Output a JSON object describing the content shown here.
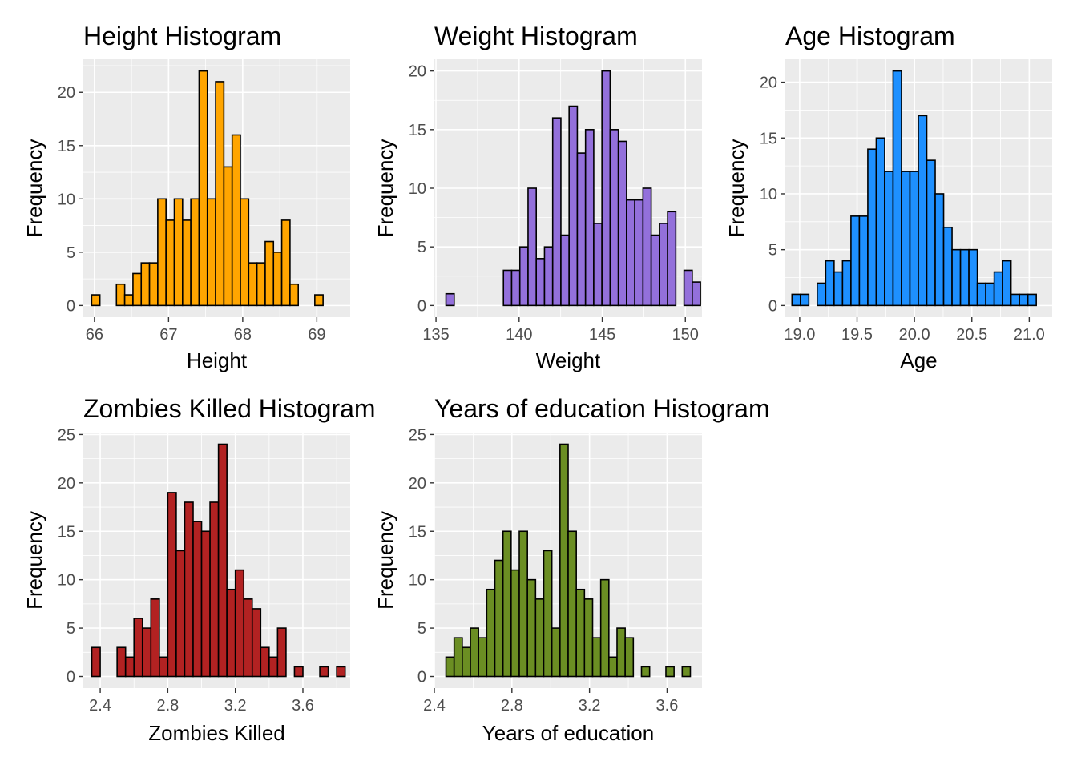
{
  "chart_data": [
    {
      "type": "bar",
      "title": "Height Histogram",
      "xlabel": "Height",
      "ylabel": "Frequency",
      "fill": "#FFA500",
      "xlim": [
        65.85,
        69.45
      ],
      "ylim": [
        -1.1,
        23.1
      ],
      "xticks": [
        66,
        67,
        68,
        69
      ],
      "xtick_labels": [
        "66",
        "67",
        "68",
        "69"
      ],
      "yticks": [
        0,
        5,
        10,
        15,
        20
      ],
      "ytick_labels": [
        "0",
        "5",
        "10",
        "15",
        "20"
      ],
      "bin_start": 65.962,
      "bin_width": 0.1115,
      "values": [
        1,
        0,
        0,
        2,
        1,
        3,
        4,
        4,
        10,
        8,
        10,
        8,
        10,
        22,
        10,
        21,
        13,
        16,
        10,
        4,
        4,
        6,
        5,
        8,
        2,
        0,
        0,
        1
      ]
    },
    {
      "type": "bar",
      "title": "Weight Histogram",
      "xlabel": "Weight",
      "ylabel": "Frequency",
      "fill": "#9370DB",
      "xlim": [
        134.9,
        151.0
      ],
      "ylim": [
        -1.0,
        21.0
      ],
      "xticks": [
        135,
        140,
        145,
        150
      ],
      "xtick_labels": [
        "135",
        "140",
        "145",
        "150"
      ],
      "yticks": [
        0,
        5,
        10,
        15,
        20
      ],
      "ytick_labels": [
        "0",
        "5",
        "10",
        "15",
        "20"
      ],
      "bin_start": 135.6,
      "bin_width": 0.4938,
      "values": [
        1,
        0,
        0,
        0,
        0,
        0,
        0,
        3,
        3,
        5,
        10,
        4,
        5,
        16,
        6,
        17,
        13,
        15,
        7,
        20,
        15,
        14,
        9,
        9,
        10,
        6,
        7,
        8,
        0,
        3,
        2
      ]
    },
    {
      "type": "bar",
      "title": "Age Histogram",
      "xlabel": "Age",
      "ylabel": "Frequency",
      "fill": "#1E90FF",
      "xlim": [
        18.875,
        21.2
      ],
      "ylim": [
        -1.05,
        22.05
      ],
      "xticks": [
        19.0,
        19.5,
        20.0,
        20.5,
        21.0
      ],
      "xtick_labels": [
        "19.0",
        "19.5",
        "20.0",
        "20.5",
        "21.0"
      ],
      "yticks": [
        0,
        5,
        10,
        15,
        20
      ],
      "ytick_labels": [
        "0",
        "5",
        "10",
        "15",
        "20"
      ],
      "bin_start": 18.933,
      "bin_width": 0.0734,
      "values": [
        1,
        1,
        0,
        2,
        4,
        3,
        4,
        8,
        8,
        14,
        15,
        12,
        21,
        12,
        12,
        17,
        13,
        10,
        7,
        5,
        5,
        5,
        2,
        2,
        3,
        4,
        1,
        1,
        1
      ]
    },
    {
      "type": "bar",
      "title": "Zombies Killed Histogram",
      "xlabel": "Zombies Killed",
      "ylabel": "Frequency",
      "fill": "#B22222",
      "xlim": [
        2.3,
        3.88
      ],
      "ylim": [
        -1.2,
        25.2
      ],
      "xticks": [
        2.4,
        2.8,
        3.2,
        3.6
      ],
      "xtick_labels": [
        "2.4",
        "2.8",
        "3.2",
        "3.6"
      ],
      "yticks": [
        0,
        5,
        10,
        15,
        20,
        25
      ],
      "ytick_labels": [
        "0",
        "5",
        "10",
        "15",
        "20",
        "25"
      ],
      "bin_start": 2.35,
      "bin_width": 0.05,
      "values": [
        3,
        0,
        0,
        3,
        2,
        6,
        5,
        8,
        2,
        19,
        13,
        18,
        16,
        15,
        18,
        24,
        9,
        11,
        8,
        7,
        3,
        2,
        5,
        0,
        1,
        0,
        0,
        1,
        0,
        1
      ]
    },
    {
      "type": "bar",
      "title": "Years of education Histogram",
      "xlabel": "Years of education",
      "ylabel": "Frequency",
      "fill": "#6B8E23",
      "xlim": [
        2.4,
        3.78
      ],
      "ylim": [
        -1.2,
        25.2
      ],
      "xticks": [
        2.4,
        2.8,
        3.2,
        3.6
      ],
      "xtick_labels": [
        "2.4",
        "2.8",
        "3.2",
        "3.6"
      ],
      "yticks": [
        0,
        5,
        10,
        15,
        20,
        25
      ],
      "ytick_labels": [
        "0",
        "5",
        "10",
        "15",
        "20",
        "25"
      ],
      "bin_start": 2.46,
      "bin_width": 0.042,
      "values": [
        2,
        4,
        3,
        5,
        4,
        9,
        12,
        15,
        11,
        15,
        10,
        8,
        13,
        5,
        24,
        15,
        9,
        8,
        4,
        10,
        2,
        5,
        4,
        0,
        1,
        0,
        0,
        1,
        0,
        1
      ]
    }
  ]
}
